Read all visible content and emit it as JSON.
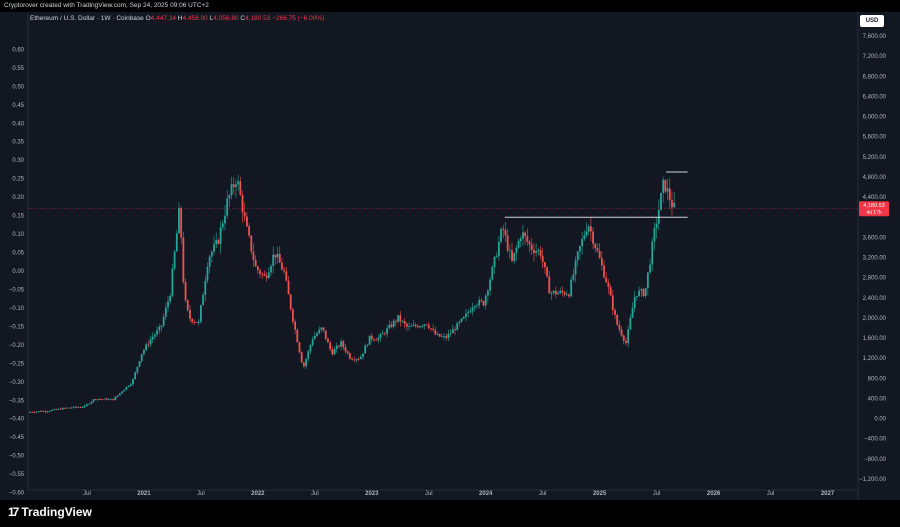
{
  "header": {
    "credit": "Cryptorover created with TradingView.com, Sep 24, 2025 09:06 UTC+2"
  },
  "legend": {
    "symbol": "Ethereum / U.S. Dollar · 1W · Coinbase",
    "o_label": "O",
    "o_value": "4,447.34",
    "h_label": "H",
    "h_value": "4,458.00",
    "l_label": "L",
    "l_value": "4,056.80",
    "c_label": "C",
    "c_value": "4,180.53",
    "change": "−266.75 (−6.00%)"
  },
  "currency_badge": "USD",
  "footer": {
    "brand": "TradingView"
  },
  "colors": {
    "up": "#26a69a",
    "down": "#ef5350",
    "up_bright": "#4caf50",
    "down_bright": "#f23645",
    "grid_text": "#b2b5be"
  },
  "chart_data": {
    "type": "candlestick",
    "title": "Ethereum / U.S. Dollar · 1W · Coinbase",
    "right_axis": {
      "label": "USD",
      "ticks": [
        "7,600.00",
        "7,200.00",
        "6,800.00",
        "6,400.00",
        "6,000.00",
        "5,600.00",
        "5,200.00",
        "4,800.00",
        "4,400.00",
        "3,600.00",
        "3,200.00",
        "2,800.00",
        "2,400.00",
        "2,000.00",
        "1,600.00",
        "1,200.00",
        "800.00",
        "400.00",
        "0.00",
        "−400.00",
        "−800.00",
        "−1,200.00"
      ],
      "range": [
        -1300,
        7800
      ]
    },
    "left_axis": {
      "ticks": [
        "0.60",
        "0.55",
        "0.50",
        "0.45",
        "0.40",
        "0.35",
        "0.30",
        "0.25",
        "0.20",
        "0.15",
        "0.10",
        "0.05",
        "0.00",
        "−0.05",
        "−0.10",
        "−0.15",
        "−0.20",
        "−0.25",
        "−0.30",
        "−0.35",
        "−0.40",
        "−0.45",
        "−0.50",
        "−0.55",
        "−0.60"
      ],
      "range": [
        -0.62,
        0.62
      ]
    },
    "x_axis": {
      "ticks": [
        "Jul",
        "2021",
        "Jul",
        "2022",
        "Jul",
        "2023",
        "Jul",
        "2024",
        "Jul",
        "2025",
        "Jul",
        "2026",
        "Jul",
        "2027"
      ],
      "range": [
        "2020-01",
        "2027-04"
      ]
    },
    "current_price": {
      "value": "4,180.53",
      "countdown": "4d 17h"
    },
    "price_path": [
      [
        "2020-01",
        130
      ],
      [
        "2020-03",
        150
      ],
      [
        "2020-05",
        210
      ],
      [
        "2020-07",
        240
      ],
      [
        "2020-08",
        390
      ],
      [
        "2020-10",
        380
      ],
      [
        "2020-11",
        560
      ],
      [
        "2020-12",
        730
      ],
      [
        "2021-01",
        1300
      ],
      [
        "2021-02",
        1600
      ],
      [
        "2021-03",
        1800
      ],
      [
        "2021-04",
        2500
      ],
      [
        "2021-05",
        4200
      ],
      [
        "2021-05b",
        2400
      ],
      [
        "2021-06",
        2000
      ],
      [
        "2021-07",
        1900
      ],
      [
        "2021-08",
        3200
      ],
      [
        "2021-09",
        3500
      ],
      [
        "2021-10",
        4300
      ],
      [
        "2021-11",
        4800
      ],
      [
        "2021-12",
        3800
      ],
      [
        "2022-01",
        3000
      ],
      [
        "2022-02",
        2800
      ],
      [
        "2022-03",
        3300
      ],
      [
        "2022-04",
        2900
      ],
      [
        "2022-05",
        1900
      ],
      [
        "2022-06",
        1000
      ],
      [
        "2022-07",
        1600
      ],
      [
        "2022-08",
        1800
      ],
      [
        "2022-09",
        1300
      ],
      [
        "2022-10",
        1500
      ],
      [
        "2022-11",
        1200
      ],
      [
        "2022-12",
        1200
      ],
      [
        "2023-01",
        1600
      ],
      [
        "2023-02",
        1600
      ],
      [
        "2023-04",
        2000
      ],
      [
        "2023-05",
        1800
      ],
      [
        "2023-06",
        1850
      ],
      [
        "2023-07",
        1900
      ],
      [
        "2023-08",
        1650
      ],
      [
        "2023-09",
        1600
      ],
      [
        "2023-10",
        1800
      ],
      [
        "2023-11",
        2000
      ],
      [
        "2023-12",
        2300
      ],
      [
        "2024-01",
        2300
      ],
      [
        "2024-02",
        3000
      ],
      [
        "2024-03",
        3800
      ],
      [
        "2024-04",
        3100
      ],
      [
        "2024-05",
        3700
      ],
      [
        "2024-06",
        3400
      ],
      [
        "2024-07",
        3300
      ],
      [
        "2024-08",
        2500
      ],
      [
        "2024-09",
        2500
      ],
      [
        "2024-10",
        2500
      ],
      [
        "2024-11",
        3300
      ],
      [
        "2024-12",
        3900
      ],
      [
        "2025-01",
        3300
      ],
      [
        "2025-02",
        2700
      ],
      [
        "2025-03",
        1900
      ],
      [
        "2025-04",
        1500
      ],
      [
        "2025-05",
        2500
      ],
      [
        "2025-06",
        2500
      ],
      [
        "2025-07",
        3700
      ],
      [
        "2025-08",
        4700
      ],
      [
        "2025-09",
        4180
      ]
    ],
    "annotations": [
      {
        "type": "horizontal_line",
        "value": 4000,
        "from": "2024-03",
        "to": "2025-09"
      },
      {
        "type": "horizontal_line",
        "value": 4900,
        "from": "2025-08",
        "to": "2025-09"
      }
    ]
  }
}
